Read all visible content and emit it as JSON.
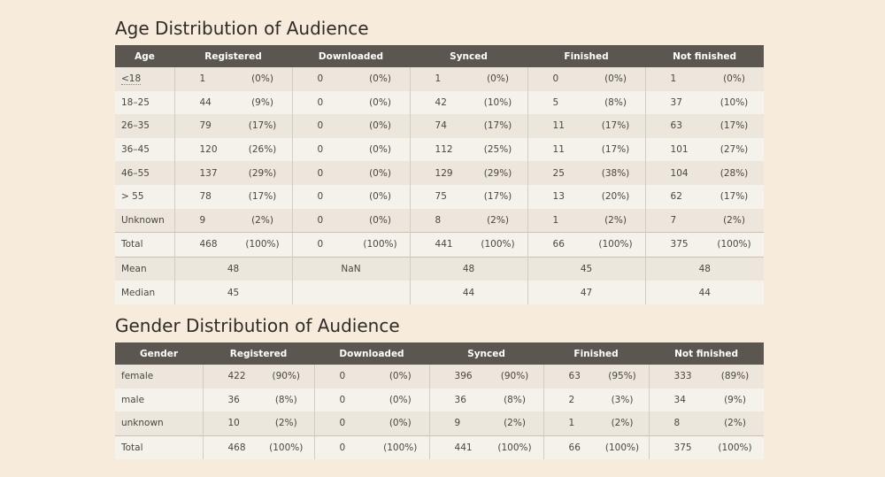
{
  "age_table": {
    "title": "Age Distribution of Audience",
    "headers": [
      "Age",
      "Registered",
      "Downloaded",
      "Synced",
      "Finished",
      "Not finished"
    ],
    "rows": [
      {
        "label": "<18",
        "cells": [
          [
            "1",
            "(0%)"
          ],
          [
            "0",
            "(0%)"
          ],
          [
            "1",
            "(0%)"
          ],
          [
            "0",
            "(0%)"
          ],
          [
            "1",
            "(0%)"
          ]
        ]
      },
      {
        "label": "18–25",
        "cells": [
          [
            "44",
            "(9%)"
          ],
          [
            "0",
            "(0%)"
          ],
          [
            "42",
            "(10%)"
          ],
          [
            "5",
            "(8%)"
          ],
          [
            "37",
            "(10%)"
          ]
        ]
      },
      {
        "label": "26–35",
        "cells": [
          [
            "79",
            "(17%)"
          ],
          [
            "0",
            "(0%)"
          ],
          [
            "74",
            "(17%)"
          ],
          [
            "11",
            "(17%)"
          ],
          [
            "63",
            "(17%)"
          ]
        ]
      },
      {
        "label": "36–45",
        "cells": [
          [
            "120",
            "(26%)"
          ],
          [
            "0",
            "(0%)"
          ],
          [
            "112",
            "(25%)"
          ],
          [
            "11",
            "(17%)"
          ],
          [
            "101",
            "(27%)"
          ]
        ]
      },
      {
        "label": "46–55",
        "cells": [
          [
            "137",
            "(29%)"
          ],
          [
            "0",
            "(0%)"
          ],
          [
            "129",
            "(29%)"
          ],
          [
            "25",
            "(38%)"
          ],
          [
            "104",
            "(28%)"
          ]
        ]
      },
      {
        "label": "> 55",
        "cells": [
          [
            "78",
            "(17%)"
          ],
          [
            "0",
            "(0%)"
          ],
          [
            "75",
            "(17%)"
          ],
          [
            "13",
            "(20%)"
          ],
          [
            "62",
            "(17%)"
          ]
        ]
      },
      {
        "label": "Unknown",
        "cells": [
          [
            "9",
            "(2%)"
          ],
          [
            "0",
            "(0%)"
          ],
          [
            "8",
            "(2%)"
          ],
          [
            "1",
            "(2%)"
          ],
          [
            "7",
            "(2%)"
          ]
        ]
      }
    ],
    "total": {
      "label": "Total",
      "cells": [
        [
          "468",
          "(100%)"
        ],
        [
          "0",
          "(100%)"
        ],
        [
          "441",
          "(100%)"
        ],
        [
          "66",
          "(100%)"
        ],
        [
          "375",
          "(100%)"
        ]
      ]
    },
    "stats": [
      {
        "label": "Mean",
        "values": [
          "48",
          "NaN",
          "48",
          "45",
          "48"
        ]
      },
      {
        "label": "Median",
        "values": [
          "45",
          "",
          "44",
          "47",
          "44"
        ]
      }
    ]
  },
  "gender_table": {
    "title": "Gender Distribution of Audience",
    "headers": [
      "Gender",
      "Registered",
      "Downloaded",
      "Synced",
      "Finished",
      "Not finished"
    ],
    "rows": [
      {
        "label": "female",
        "cells": [
          [
            "422",
            "(90%)"
          ],
          [
            "0",
            "(0%)"
          ],
          [
            "396",
            "(90%)"
          ],
          [
            "63",
            "(95%)"
          ],
          [
            "333",
            "(89%)"
          ]
        ]
      },
      {
        "label": "male",
        "cells": [
          [
            "36",
            "(8%)"
          ],
          [
            "0",
            "(0%)"
          ],
          [
            "36",
            "(8%)"
          ],
          [
            "2",
            "(3%)"
          ],
          [
            "34",
            "(9%)"
          ]
        ]
      },
      {
        "label": "unknown",
        "cells": [
          [
            "10",
            "(2%)"
          ],
          [
            "0",
            "(0%)"
          ],
          [
            "9",
            "(2%)"
          ],
          [
            "1",
            "(2%)"
          ],
          [
            "8",
            "(2%)"
          ]
        ]
      }
    ],
    "total": {
      "label": "Total",
      "cells": [
        [
          "468",
          "(100%)"
        ],
        [
          "0",
          "(100%)"
        ],
        [
          "441",
          "(100%)"
        ],
        [
          "66",
          "(100%)"
        ],
        [
          "375",
          "(100%)"
        ]
      ]
    }
  }
}
